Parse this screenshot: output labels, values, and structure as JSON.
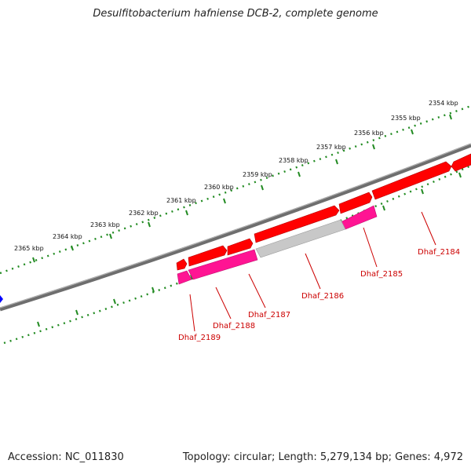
{
  "title": "Desulfitobacterium hafniense DCB-2, complete genome",
  "footer": {
    "accession": "Accession: NC_011830",
    "summary": "Topology: circular; Length: 5,279,134 bp; Genes: 4,972"
  },
  "ticks": [
    {
      "label": "2354 kbp"
    },
    {
      "label": "2355 kbp"
    },
    {
      "label": "2356 kbp"
    },
    {
      "label": "2357 kbp"
    },
    {
      "label": "2358 kbp"
    },
    {
      "label": "2359 kbp"
    },
    {
      "label": "2360 kbp"
    },
    {
      "label": "2361 kbp"
    },
    {
      "label": "2362 kbp"
    },
    {
      "label": "2363 kbp"
    },
    {
      "label": "2364 kbp"
    },
    {
      "label": "2365 kbp"
    }
  ],
  "genes": [
    {
      "name": "Dhaf_2184"
    },
    {
      "name": "Dhaf_2185"
    },
    {
      "name": "Dhaf_2186"
    },
    {
      "name": "Dhaf_2187"
    },
    {
      "name": "Dhaf_2188"
    },
    {
      "name": "Dhaf_2189"
    }
  ],
  "colors": {
    "backbone": "#808080",
    "forward_gene": "#ff0000",
    "reverse_gene": "#ff1493",
    "pseudo_gene": "#c0c0c0",
    "tick": "#228b22",
    "gene_label": "#cc0000",
    "marker": "#0000ff"
  }
}
